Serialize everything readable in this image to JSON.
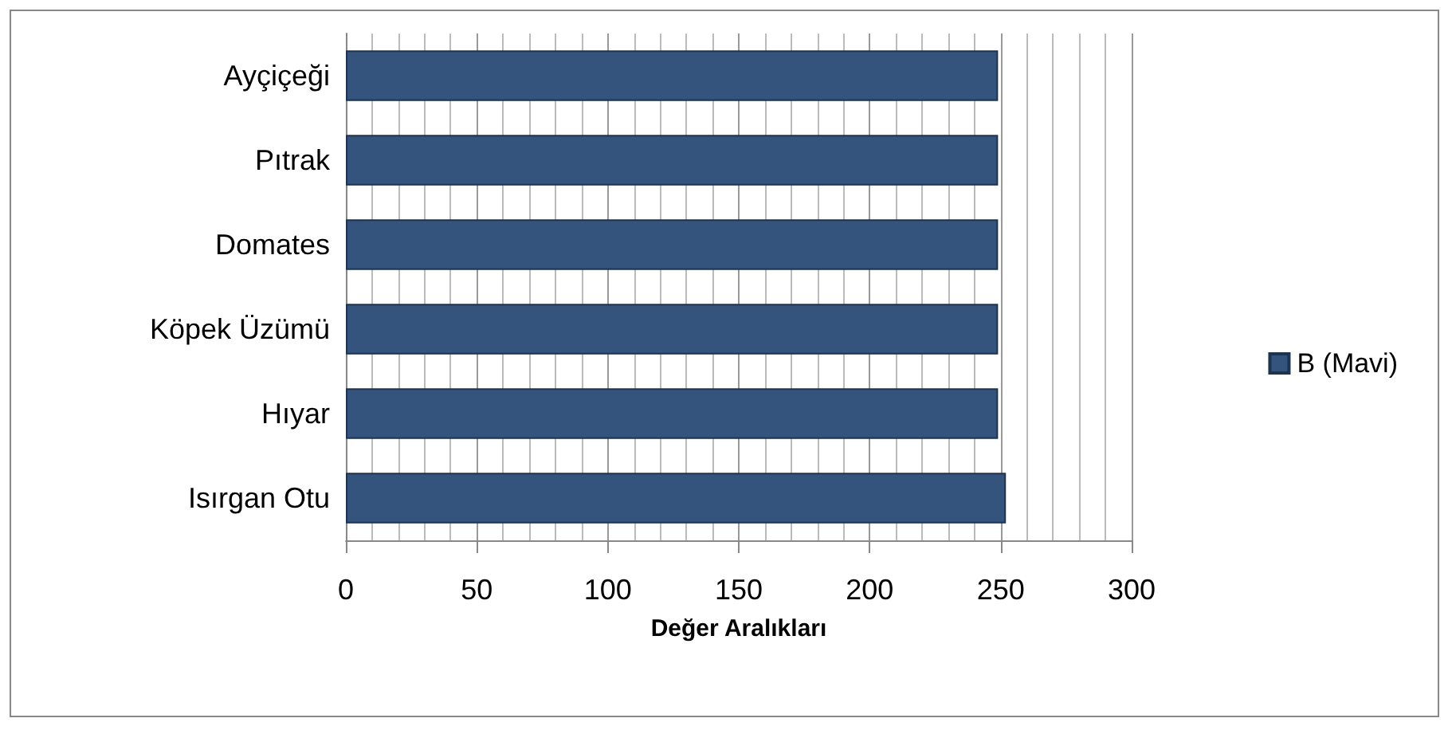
{
  "chart_data": {
    "type": "bar",
    "orientation": "horizontal",
    "xlabel": "Değer Aralıkları",
    "categories": [
      "Ayçiçeği",
      "Pıtrak",
      "Domates",
      "Köpek Üzümü",
      "Hıyar",
      "Isırgan Otu"
    ],
    "series": [
      {
        "name": "B (Mavi)",
        "color": "#34537d",
        "values": [
          249,
          249,
          249,
          249,
          249,
          252
        ]
      }
    ],
    "xlim": [
      0,
      300
    ],
    "xticks": [
      0,
      50,
      100,
      150,
      200,
      250,
      300
    ],
    "grid": "x",
    "legend": "right"
  }
}
